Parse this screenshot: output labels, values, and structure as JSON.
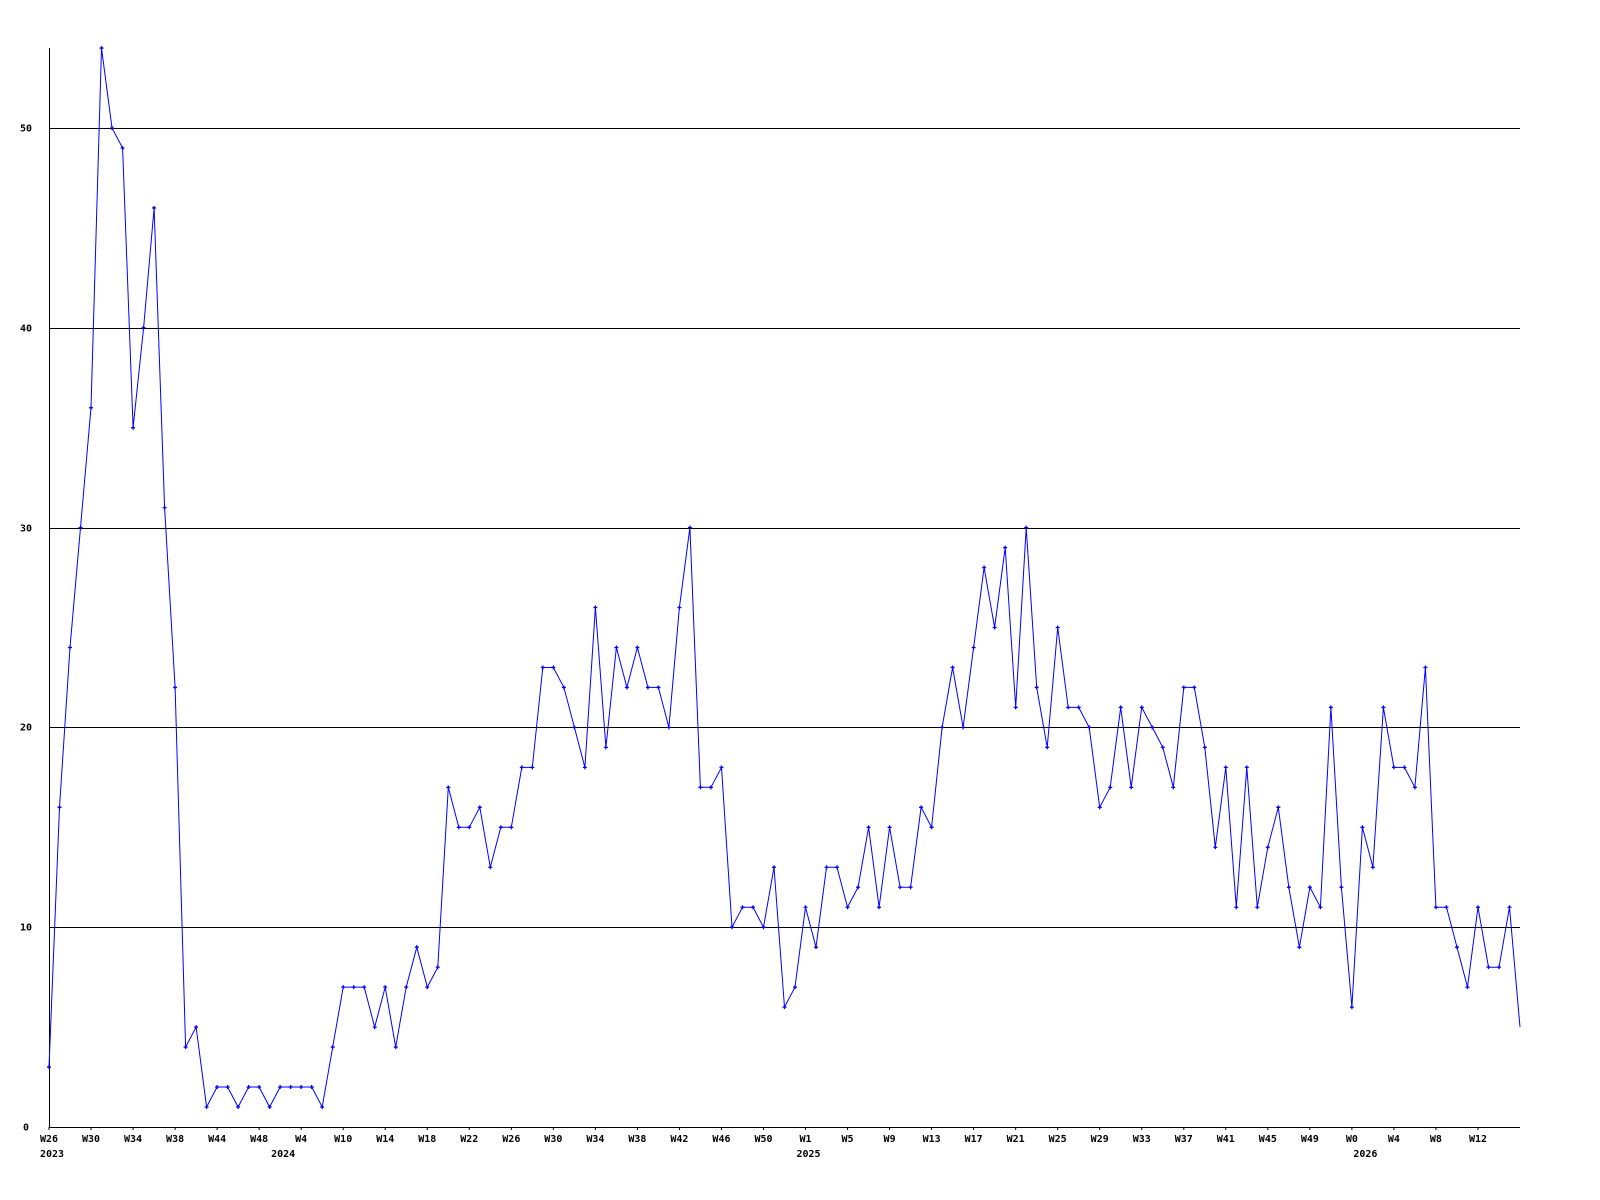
{
  "chart_data": {
    "type": "line",
    "title": "",
    "xlabel": "",
    "ylabel": "",
    "ylim": [
      0,
      54
    ],
    "grid": true,
    "y_ticks": [
      0,
      10,
      20,
      30,
      40,
      50
    ],
    "line_color": "#0000ff",
    "grid_color": "#000000",
    "x_ticks": [
      {
        "index": 0,
        "label": "W26"
      },
      {
        "index": 4,
        "label": "W30"
      },
      {
        "index": 8,
        "label": "W34"
      },
      {
        "index": 12,
        "label": "W38"
      },
      {
        "index": 16,
        "label": "W44"
      },
      {
        "index": 20,
        "label": "W48"
      },
      {
        "index": 24,
        "label": "W4"
      },
      {
        "index": 28,
        "label": "W10"
      },
      {
        "index": 32,
        "label": "W14"
      },
      {
        "index": 36,
        "label": "W18"
      },
      {
        "index": 40,
        "label": "W22"
      },
      {
        "index": 44,
        "label": "W26"
      },
      {
        "index": 48,
        "label": "W30"
      },
      {
        "index": 52,
        "label": "W34"
      },
      {
        "index": 56,
        "label": "W38"
      },
      {
        "index": 60,
        "label": "W42"
      },
      {
        "index": 64,
        "label": "W46"
      },
      {
        "index": 68,
        "label": "W50"
      },
      {
        "index": 72,
        "label": "W1"
      },
      {
        "index": 76,
        "label": "W5"
      },
      {
        "index": 80,
        "label": "W9"
      },
      {
        "index": 84,
        "label": "W13"
      },
      {
        "index": 88,
        "label": "W17"
      },
      {
        "index": 92,
        "label": "W21"
      },
      {
        "index": 96,
        "label": "W25"
      },
      {
        "index": 100,
        "label": "W29"
      },
      {
        "index": 104,
        "label": "W33"
      },
      {
        "index": 108,
        "label": "W37"
      },
      {
        "index": 112,
        "label": "W41"
      },
      {
        "index": 116,
        "label": "W45"
      },
      {
        "index": 120,
        "label": "W49"
      },
      {
        "index": 124,
        "label": "W0"
      },
      {
        "index": 128,
        "label": "W4"
      },
      {
        "index": 132,
        "label": "W8"
      },
      {
        "index": 136,
        "label": "W12"
      }
    ],
    "year_labels": [
      {
        "index": 0,
        "label": "2023"
      },
      {
        "index": 22,
        "label": "2024"
      },
      {
        "index": 72,
        "label": "2025"
      },
      {
        "index": 125,
        "label": "2026"
      }
    ],
    "values": [
      3,
      16,
      24,
      30,
      36,
      54,
      50,
      49,
      35,
      40,
      46,
      31,
      22,
      4,
      5,
      1,
      2,
      2,
      1,
      2,
      2,
      1,
      2,
      2,
      2,
      2,
      1,
      4,
      7,
      7,
      7,
      5,
      7,
      4,
      7,
      9,
      7,
      8,
      17,
      15,
      15,
      16,
      13,
      15,
      15,
      18,
      18,
      23,
      23,
      22,
      20,
      18,
      26,
      19,
      24,
      22,
      24,
      22,
      22,
      20,
      26,
      30,
      17,
      17,
      18,
      10,
      11,
      11,
      10,
      13,
      6,
      7,
      11,
      9,
      13,
      13,
      11,
      12,
      15,
      11,
      15,
      12,
      12,
      16,
      15,
      20,
      23,
      20,
      24,
      28,
      25,
      29,
      21,
      30,
      22,
      19,
      25,
      21,
      21,
      20,
      16,
      17,
      21,
      17,
      21,
      20,
      19,
      17,
      22,
      22,
      19,
      14,
      18,
      11,
      18,
      11,
      14,
      16,
      12,
      9,
      12,
      11,
      21,
      12,
      6,
      15,
      13,
      21,
      18,
      18,
      17,
      23,
      11,
      11,
      9,
      7,
      11,
      8,
      8,
      11,
      5
    ]
  }
}
